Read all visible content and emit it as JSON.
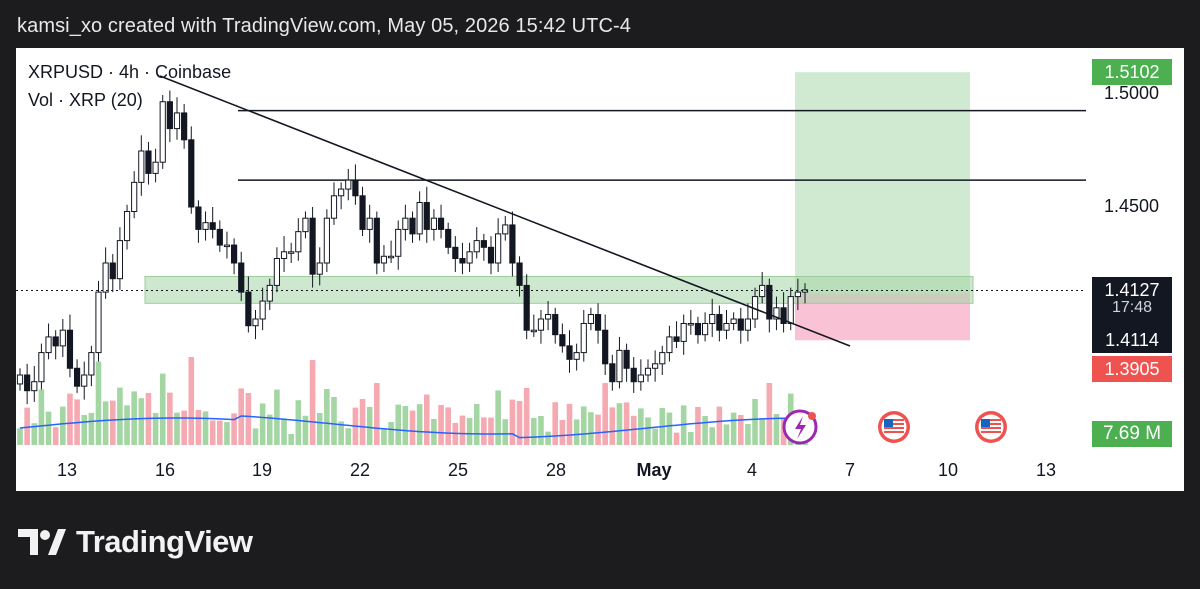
{
  "header": {
    "text": "kamsi_xo created with TradingView.com, May 05, 2026 15:42 UTC-4"
  },
  "legend": {
    "symbol_line": "XRPUSD · 4h · Coinbase",
    "volume_line": "Vol · XRP (20)"
  },
  "price_axis": {
    "labels": [
      "1.5000",
      "1.4500"
    ],
    "target_badge": "1.5102",
    "current_price": "1.4127",
    "countdown": "17:48",
    "secondary_price": "1.4114",
    "stop_badge": "1.3905",
    "volume_badge": "7.69 M"
  },
  "x_axis": {
    "ticks": [
      "13",
      "16",
      "19",
      "22",
      "25",
      "28",
      "May",
      "4",
      "7",
      "10",
      "13"
    ]
  },
  "footer": {
    "brand": "TradingView"
  },
  "colors": {
    "up": "#089981",
    "down": "#f23645",
    "target_zone": "#c8e6c9",
    "stop_zone": "#f8bbd0",
    "support_zone": "#a5d6a7",
    "volume_ma": "#2962ff",
    "badge_green": "#4caf50",
    "badge_red": "#ef5350"
  },
  "chart_data": {
    "type": "candlestick",
    "symbol": "XRPUSD",
    "timeframe": "4h",
    "exchange": "Coinbase",
    "ylim": [
      1.365,
      1.52
    ],
    "x_labels": [
      "13",
      "16",
      "19",
      "22",
      "25",
      "28",
      "May",
      "4",
      "7",
      "10",
      "13"
    ],
    "horizontal_levels": [
      1.493,
      1.462
    ],
    "support_zone": [
      1.407,
      1.419
    ],
    "trendline": {
      "from": [
        "Apr 17",
        1.505
      ],
      "to": [
        "May 5",
        1.409
      ]
    },
    "position": {
      "entry": 1.4114,
      "target": 1.5102,
      "stop": 1.3905
    },
    "current_price": 1.4127,
    "candles_close": [
      1.375,
      1.368,
      1.372,
      1.385,
      1.392,
      1.388,
      1.395,
      1.378,
      1.37,
      1.375,
      1.385,
      1.412,
      1.425,
      1.418,
      1.435,
      1.448,
      1.461,
      1.475,
      1.465,
      1.47,
      1.497,
      1.485,
      1.492,
      1.48,
      1.45,
      1.44,
      1.443,
      1.44,
      1.433,
      1.433,
      1.425,
      1.412,
      1.397,
      1.4,
      1.408,
      1.415,
      1.427,
      1.43,
      1.43,
      1.439,
      1.445,
      1.42,
      1.425,
      1.445,
      1.455,
      1.458,
      1.462,
      1.455,
      1.44,
      1.445,
      1.425,
      1.428,
      1.428,
      1.44,
      1.445,
      1.438,
      1.452,
      1.44,
      1.445,
      1.44,
      1.432,
      1.427,
      1.425,
      1.43,
      1.435,
      1.432,
      1.425,
      1.438,
      1.442,
      1.425,
      1.415,
      1.395,
      1.395,
      1.4,
      1.402,
      1.393,
      1.388,
      1.382,
      1.385,
      1.398,
      1.402,
      1.395,
      1.38,
      1.372,
      1.386,
      1.378,
      1.372,
      1.375,
      1.378,
      1.38,
      1.385,
      1.392,
      1.39,
      1.398,
      1.398,
      1.393,
      1.398,
      1.402,
      1.395,
      1.398,
      1.4,
      1.395,
      1.4,
      1.41,
      1.415,
      1.4,
      1.405,
      1.398,
      1.41,
      1.412,
      1.413
    ],
    "volume_label": "7.69 M"
  }
}
